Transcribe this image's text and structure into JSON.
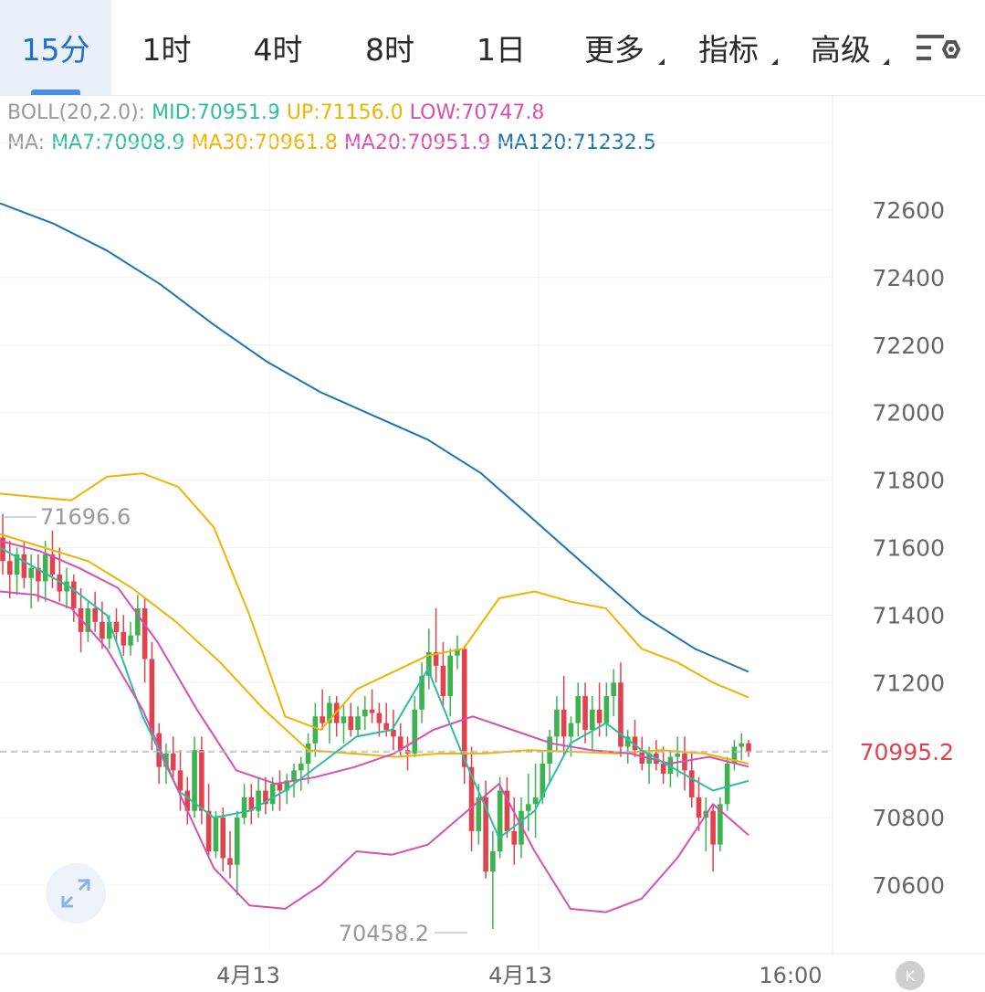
{
  "tabs": [
    {
      "label": "15分",
      "active": true
    },
    {
      "label": "1时"
    },
    {
      "label": "4时"
    },
    {
      "label": "8时"
    },
    {
      "label": "1日"
    },
    {
      "label": "更多",
      "dropdown": true
    },
    {
      "label": "指标",
      "dropdown": true
    },
    {
      "label": "高级",
      "dropdown": true
    }
  ],
  "indicators": {
    "boll_label": "BOLL(20,2.0):",
    "boll_mid": "MID:70951.9",
    "boll_up": "UP:71156.0",
    "boll_low": "LOW:70747.8",
    "ma_label": "MA:",
    "ma7": "MA7:70908.9",
    "ma30": "MA30:70961.8",
    "ma20": "MA20:70951.9",
    "ma120": "MA120:71232.5"
  },
  "colors": {
    "up": "#3db34f",
    "down": "#e0424e",
    "ma7": "#2cbea0",
    "ma30": "#f0b400",
    "ma20": "#d84fb0",
    "ma120": "#1e73b7",
    "boll_up": "#f0b400",
    "boll_low": "#d84fb0",
    "current_price": "#e0424e"
  },
  "chart_data": {
    "type": "candlestick",
    "y_ticks": [
      "72600",
      "72400",
      "72200",
      "72000",
      "71800",
      "71600",
      "71400",
      "71200",
      "70800",
      "70600"
    ],
    "x_ticks": [
      "4月13",
      "4月13",
      "16:00"
    ],
    "ylim": [
      70400,
      72900
    ],
    "current_price": "70995.2",
    "high_marker": "71696.6",
    "low_marker": "70458.2",
    "candles": [
      [
        71630,
        71700,
        71520,
        71560
      ],
      [
        71560,
        71620,
        71450,
        71520
      ],
      [
        71520,
        71600,
        71460,
        71580
      ],
      [
        71580,
        71620,
        71480,
        71510
      ],
      [
        71510,
        71580,
        71420,
        71540
      ],
      [
        71540,
        71580,
        71440,
        71500
      ],
      [
        71500,
        71620,
        71440,
        71580
      ],
      [
        71580,
        71650,
        71480,
        71520
      ],
      [
        71520,
        71600,
        71440,
        71470
      ],
      [
        71470,
        71540,
        71420,
        71500
      ],
      [
        71500,
        71520,
        71380,
        71420
      ],
      [
        71420,
        71480,
        71290,
        71350
      ],
      [
        71350,
        71440,
        71320,
        71420
      ],
      [
        71420,
        71470,
        71350,
        71380
      ],
      [
        71380,
        71440,
        71300,
        71330
      ],
      [
        71330,
        71400,
        71300,
        71380
      ],
      [
        71380,
        71420,
        71320,
        71350
      ],
      [
        71350,
        71400,
        71280,
        71310
      ],
      [
        71310,
        71380,
        71280,
        71340
      ],
      [
        71340,
        71460,
        71320,
        71420
      ],
      [
        71420,
        71450,
        71200,
        71270
      ],
      [
        71270,
        71320,
        71000,
        71050
      ],
      [
        71050,
        71080,
        70900,
        70950
      ],
      [
        70950,
        71020,
        70900,
        70990
      ],
      [
        70990,
        71040,
        70920,
        70940
      ],
      [
        70940,
        71000,
        70820,
        70880
      ],
      [
        70880,
        70920,
        70780,
        70820
      ],
      [
        70820,
        71040,
        70800,
        71000
      ],
      [
        71000,
        71040,
        70780,
        70820
      ],
      [
        70820,
        70900,
        70680,
        70700
      ],
      [
        70700,
        70820,
        70680,
        70800
      ],
      [
        70800,
        70830,
        70640,
        70680
      ],
      [
        70680,
        70760,
        70620,
        70660
      ],
      [
        70660,
        70820,
        70570,
        70800
      ],
      [
        70800,
        70900,
        70780,
        70860
      ],
      [
        70860,
        70900,
        70780,
        70820
      ],
      [
        70820,
        70920,
        70800,
        70880
      ],
      [
        70880,
        70920,
        70810,
        70840
      ],
      [
        70840,
        70920,
        70820,
        70900
      ],
      [
        70900,
        70940,
        70820,
        70880
      ],
      [
        70880,
        70930,
        70840,
        70910
      ],
      [
        70910,
        70960,
        70860,
        70940
      ],
      [
        70940,
        70980,
        70880,
        70960
      ],
      [
        70960,
        71050,
        70900,
        71020
      ],
      [
        71020,
        71140,
        70980,
        71100
      ],
      [
        71100,
        71180,
        71060,
        71080
      ],
      [
        71080,
        71160,
        71020,
        71140
      ],
      [
        71140,
        71160,
        71040,
        71080
      ],
      [
        71080,
        71140,
        71020,
        71100
      ],
      [
        71100,
        71140,
        71040,
        71060
      ],
      [
        71060,
        71130,
        71040,
        71100
      ],
      [
        71100,
        71160,
        71060,
        71120
      ],
      [
        71120,
        71180,
        71080,
        71110
      ],
      [
        71110,
        71140,
        71040,
        71080
      ],
      [
        71080,
        71140,
        71040,
        71060
      ],
      [
        71060,
        71120,
        71000,
        71040
      ],
      [
        71040,
        71080,
        70980,
        71000
      ],
      [
        71000,
        71040,
        70940,
        70990
      ],
      [
        70990,
        71160,
        70980,
        71120
      ],
      [
        71120,
        71260,
        71080,
        71220
      ],
      [
        71220,
        71360,
        71180,
        71290
      ],
      [
        71290,
        71420,
        71200,
        71250
      ],
      [
        71250,
        71320,
        71130,
        71160
      ],
      [
        71160,
        71300,
        71100,
        71280
      ],
      [
        71280,
        71340,
        71240,
        71300
      ],
      [
        71300,
        71310,
        70900,
        70950
      ],
      [
        70950,
        71010,
        70700,
        70760
      ],
      [
        70760,
        70900,
        70720,
        70860
      ],
      [
        70860,
        70910,
        70620,
        70640
      ],
      [
        70640,
        70760,
        70470,
        70700
      ],
      [
        70700,
        70920,
        70680,
        70880
      ],
      [
        70880,
        70920,
        70740,
        70760
      ],
      [
        70760,
        70860,
        70660,
        70720
      ],
      [
        70720,
        70860,
        70680,
        70820
      ],
      [
        70820,
        70930,
        70760,
        70840
      ],
      [
        70840,
        70960,
        70740,
        70860
      ],
      [
        70860,
        71000,
        70840,
        70960
      ],
      [
        70960,
        71060,
        70900,
        71040
      ],
      [
        71040,
        71160,
        71000,
        71120
      ],
      [
        71120,
        71220,
        70980,
        71040
      ],
      [
        71040,
        71100,
        70980,
        71080
      ],
      [
        71080,
        71200,
        71040,
        71160
      ],
      [
        71160,
        71200,
        71020,
        71060
      ],
      [
        71060,
        71160,
        71000,
        71120
      ],
      [
        71120,
        71200,
        71040,
        71080
      ],
      [
        71080,
        71200,
        71040,
        71160
      ],
      [
        71160,
        71240,
        71100,
        71200
      ],
      [
        71200,
        71260,
        70980,
        71010
      ],
      [
        71010,
        71060,
        70960,
        71040
      ],
      [
        71040,
        71090,
        70980,
        71000
      ],
      [
        71000,
        71040,
        70940,
        70960
      ],
      [
        70960,
        71010,
        70900,
        70990
      ],
      [
        70990,
        71030,
        70940,
        70960
      ],
      [
        70960,
        71010,
        70900,
        70930
      ],
      [
        70930,
        71000,
        70890,
        70980
      ],
      [
        70980,
        71040,
        70920,
        70990
      ],
      [
        70990,
        71040,
        70880,
        70940
      ],
      [
        70940,
        70990,
        70830,
        70860
      ],
      [
        70860,
        70920,
        70760,
        70800
      ],
      [
        70800,
        70860,
        70700,
        70820
      ],
      [
        70820,
        70840,
        70640,
        70720
      ],
      [
        70720,
        70860,
        70700,
        70840
      ],
      [
        70840,
        70980,
        70820,
        70960
      ],
      [
        70960,
        71030,
        70940,
        71010
      ],
      [
        71010,
        71050,
        70970,
        71020
      ],
      [
        71020,
        71030,
        70980,
        70995
      ]
    ],
    "series": [
      {
        "name": "MA120",
        "values": [
          72620,
          72560,
          72480,
          72380,
          72260,
          72150,
          72060,
          71990,
          71920,
          71820,
          71680,
          71540,
          71400,
          71300,
          71232
        ]
      },
      {
        "name": "MA30",
        "values": [
          71640,
          71600,
          71560,
          71480,
          71380,
          71260,
          71120,
          71000,
          70990,
          70980,
          70990,
          70990,
          71000,
          70995,
          70990,
          71000,
          70990,
          70960
        ]
      },
      {
        "name": "MA20",
        "values": [
          71620,
          71590,
          71540,
          71480,
          71320,
          71120,
          70940,
          70900,
          70920,
          70950,
          70990,
          71060,
          71100,
          71060,
          71020,
          71000,
          70990,
          70960,
          70980,
          70951
        ]
      },
      {
        "name": "MA7",
        "values": [
          71600,
          71540,
          71480,
          71400,
          71100,
          70880,
          70800,
          70820,
          70880,
          70960,
          71040,
          71060,
          71240,
          70980,
          70740,
          70820,
          71020,
          71080,
          71000,
          70940,
          70880,
          70909
        ]
      },
      {
        "name": "UP",
        "values": [
          71760,
          71750,
          71740,
          71810,
          71820,
          71780,
          71660,
          71400,
          71100,
          71060,
          71180,
          71230,
          71280,
          71300,
          71450,
          71470,
          71440,
          71420,
          71300,
          71260,
          71200,
          71156
        ]
      },
      {
        "name": "LOW",
        "values": [
          71470,
          71460,
          71420,
          71300,
          71120,
          70880,
          70650,
          70540,
          70530,
          70600,
          70700,
          70690,
          70720,
          70810,
          70900,
          70700,
          70530,
          70520,
          70560,
          70680,
          70840,
          70748
        ]
      }
    ]
  }
}
